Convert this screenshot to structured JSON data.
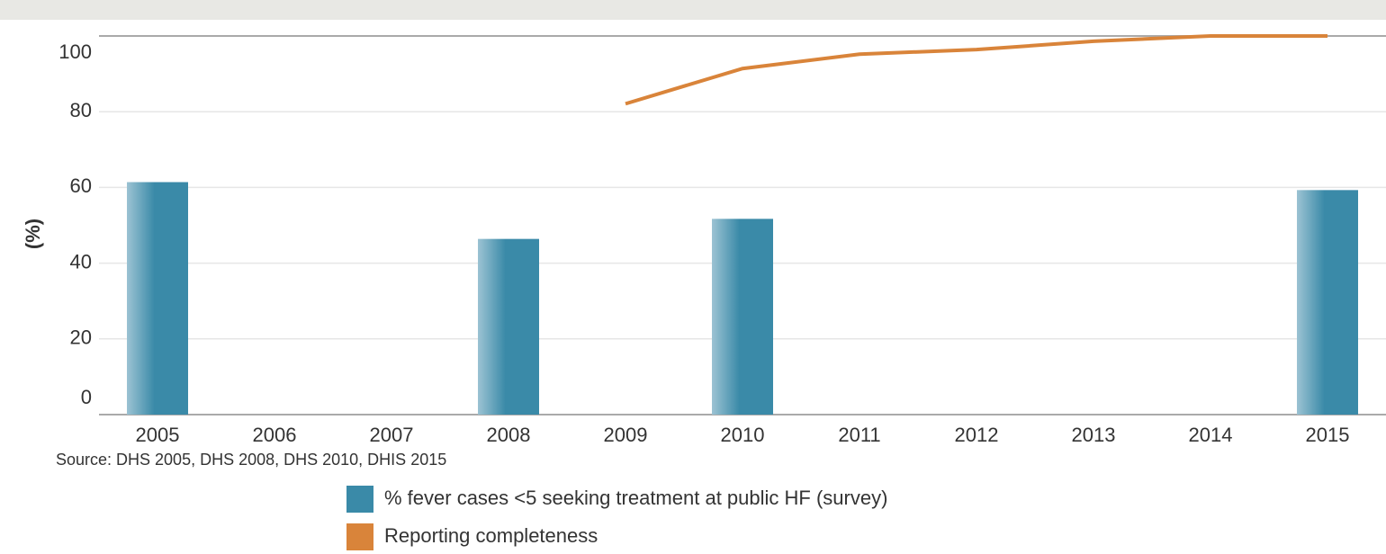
{
  "chart_data": {
    "type": "bar",
    "y_label": "(%)",
    "source": "Source: DHS 2005, DHS 2008, DHS 2010, DHIS 2015",
    "categories": [
      "2005",
      "2006",
      "2007",
      "2008",
      "2009",
      "2010",
      "2011",
      "2012",
      "2013",
      "2014",
      "2015"
    ],
    "series": [
      {
        "name": "% fever cases <5 seeking treatment at public HF (survey)",
        "type": "bar",
        "color": "#3a8aa8",
        "values": [
          61.4,
          null,
          null,
          46.4,
          null,
          51.7,
          null,
          null,
          null,
          null,
          59.3
        ]
      },
      {
        "name": "Reporting completeness",
        "type": "line",
        "color": "#d9843a",
        "values": [
          null,
          null,
          null,
          null,
          82.1,
          91.4,
          95.2,
          96.4,
          98.6,
          100,
          100
        ]
      }
    ],
    "ylim": [
      0,
      100
    ],
    "yticks": [
      0,
      20,
      40,
      60,
      80,
      100
    ],
    "grid": true
  }
}
